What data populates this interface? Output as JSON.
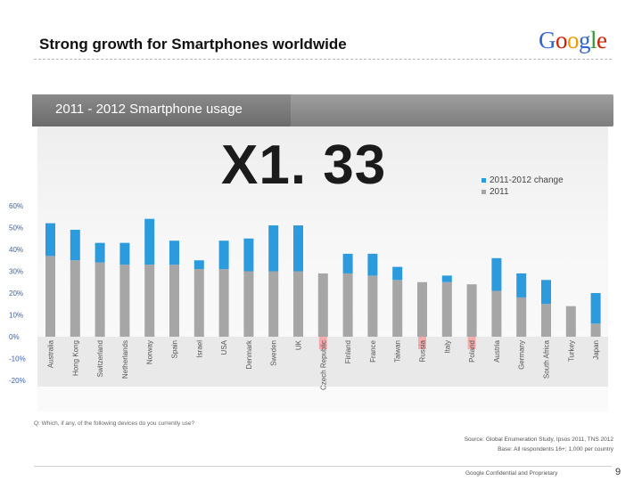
{
  "slide": {
    "title": "Strong growth for Smartphones worldwide",
    "logo": "Google",
    "banner": "2011 - 2012 Smartphone usage",
    "multiplier": "X1. 33",
    "question": "Q: Which, if any, of the following devices do you currently use?",
    "source_line1": "Source: Global Enumeration Study, Ipsos 2011, TNS 2012",
    "source_line2": "Base: All respondents 16+; 1,000 per country",
    "confidential": "Google Confidential and Proprietary",
    "page_number": "9"
  },
  "logo_colors": [
    "#3366cc",
    "#cc2200",
    "#ee9900",
    "#3366cc",
    "#339933",
    "#cc2200"
  ],
  "colors": {
    "change": "#2b9bde",
    "base": "#a6a6a6",
    "highlight": "#f5a0a0",
    "tick": "#3a5fa8"
  },
  "chart_data": {
    "type": "bar",
    "stacked": true,
    "title": "2011 - 2012 Smartphone usage",
    "categories": [
      "Australia",
      "Hong Kong",
      "Switzerland",
      "Netherlands",
      "Norway",
      "Spain",
      "Israel",
      "USA",
      "Denmark",
      "Sweden",
      "UK",
      "Czech Republic",
      "Finland",
      "France",
      "Taiwan",
      "Russia",
      "Italy",
      "Poland",
      "Austria",
      "Germany",
      "South Africa",
      "Turkey",
      "Japan"
    ],
    "highlighted": [
      "Czech Republic",
      "Russia",
      "Poland"
    ],
    "series": [
      {
        "name": "2011",
        "values": [
          37,
          35,
          34,
          33,
          33,
          33,
          31,
          31,
          30,
          30,
          30,
          29,
          29,
          28,
          26,
          25,
          25,
          24,
          21,
          18,
          15,
          14,
          6
        ]
      },
      {
        "name": "2011-2012 change",
        "values": [
          15,
          14,
          9,
          10,
          21,
          11,
          4,
          13,
          15,
          21,
          21,
          0,
          9,
          10,
          6,
          0,
          3,
          0,
          15,
          11,
          11,
          0,
          14
        ]
      }
    ],
    "yticks": [
      "60%",
      "50%",
      "40%",
      "30%",
      "20%",
      "10%",
      "0%",
      "-10%",
      "-20%"
    ],
    "ylim": [
      -20,
      60
    ],
    "legend": [
      "2011-2012 change",
      "2011"
    ],
    "legend_position": "top-right"
  }
}
